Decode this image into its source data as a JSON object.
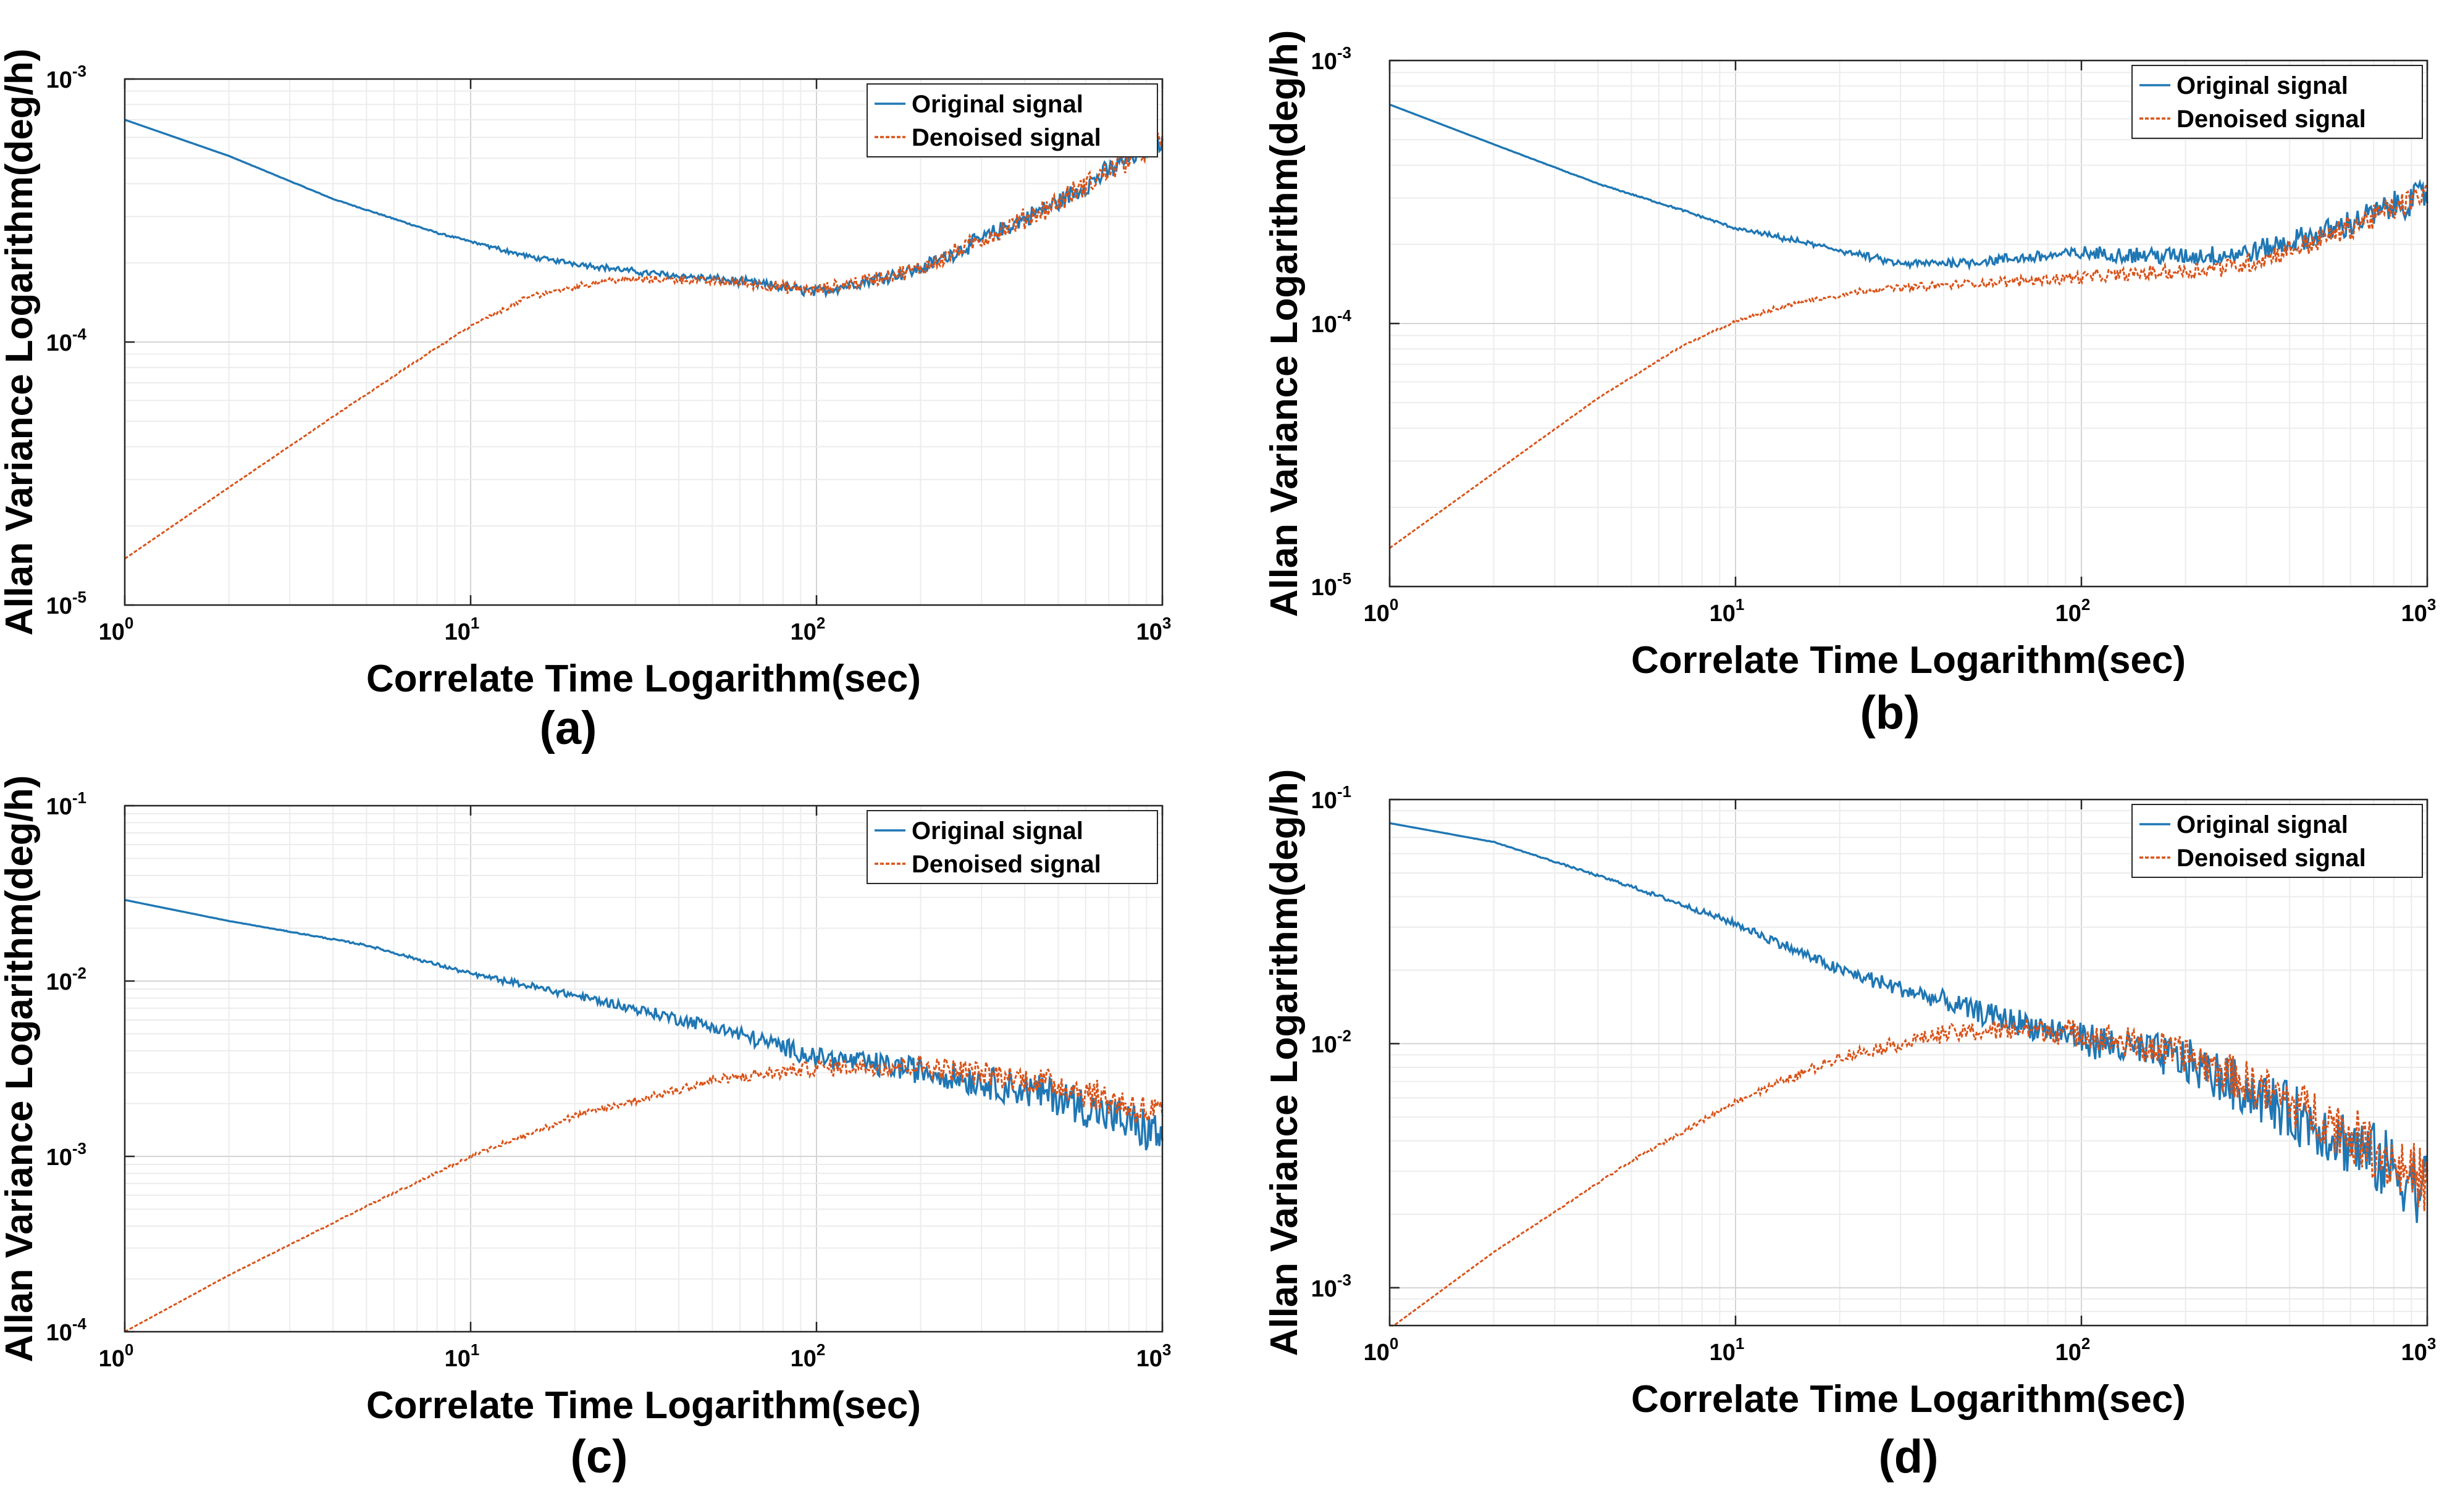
{
  "chart_data": [
    {
      "type": "line",
      "panel_label": "(a)",
      "xscale": "log",
      "yscale": "log",
      "xlim": [
        1,
        1000
      ],
      "ylim": [
        1e-05,
        0.001
      ],
      "xlabel": "Correlate Time Logarithm(sec)",
      "ylabel": "Allan Variance Logarithm(deg/h)",
      "x_ticks": [
        {
          "base": "10",
          "exp": "0"
        },
        {
          "base": "10",
          "exp": "1"
        },
        {
          "base": "10",
          "exp": "2"
        },
        {
          "base": "10",
          "exp": "3"
        }
      ],
      "y_ticks": [
        {
          "base": "10",
          "exp": "-5"
        },
        {
          "base": "10",
          "exp": "-4"
        },
        {
          "base": "10",
          "exp": "-3"
        }
      ],
      "grid": true,
      "legend_position": "top-right",
      "series": [
        {
          "name": "Original signal",
          "color": "#1f77b4",
          "style": "solid",
          "x": [
            1,
            2,
            4,
            8,
            15,
            30,
            60,
            100,
            200,
            500,
            1000
          ],
          "y": [
            0.0007,
            0.00051,
            0.00035,
            0.00026,
            0.00021,
            0.000185,
            0.00017,
            0.000155,
            0.00019,
            0.00034,
            0.0006
          ],
          "noise": 0.03
        },
        {
          "name": "Denoised signal",
          "color": "#d95319",
          "style": "dotted",
          "x": [
            1,
            2,
            4,
            7,
            10,
            15,
            25,
            40,
            60,
            100,
            200,
            500,
            1000
          ],
          "y": [
            1.5e-05,
            2.8e-05,
            5.2e-05,
            8.5e-05,
            0.000115,
            0.00015,
            0.000172,
            0.000173,
            0.000168,
            0.000157,
            0.00019,
            0.00034,
            0.0006
          ],
          "noise": 0.035
        }
      ]
    },
    {
      "type": "line",
      "panel_label": "(b)",
      "xscale": "log",
      "yscale": "log",
      "xlim": [
        1,
        1000
      ],
      "ylim": [
        1e-05,
        0.001
      ],
      "xlabel": "Correlate Time Logarithm(sec)",
      "ylabel": "Allan Variance Logarithm(deg/h)",
      "x_ticks": [
        {
          "base": "10",
          "exp": "0"
        },
        {
          "base": "10",
          "exp": "1"
        },
        {
          "base": "10",
          "exp": "2"
        },
        {
          "base": "10",
          "exp": "3"
        }
      ],
      "y_ticks": [
        {
          "base": "10",
          "exp": "-5"
        },
        {
          "base": "10",
          "exp": "-4"
        },
        {
          "base": "10",
          "exp": "-3"
        }
      ],
      "grid": true,
      "legend_position": "top-right",
      "series": [
        {
          "name": "Original signal",
          "color": "#1f77b4",
          "style": "solid",
          "x": [
            1,
            2,
            4,
            7,
            10,
            20,
            30,
            50,
            100,
            200,
            300,
            500,
            1000
          ],
          "y": [
            0.00068,
            0.00048,
            0.00034,
            0.00027,
            0.00023,
            0.00019,
            0.000168,
            0.000172,
            0.000185,
            0.00018,
            0.000185,
            0.00022,
            0.00031
          ],
          "noise": 0.04
        },
        {
          "name": "Denoised signal",
          "color": "#d95319",
          "style": "dotted",
          "x": [
            1,
            2,
            4,
            7,
            10,
            15,
            25,
            50,
            100,
            200,
            300,
            500,
            1000
          ],
          "y": [
            1.4e-05,
            2.7e-05,
            5.2e-05,
            8.2e-05,
            0.000102,
            0.00012,
            0.000135,
            0.000142,
            0.00015,
            0.000158,
            0.000168,
            0.00021,
            0.00031
          ],
          "noise": 0.035
        }
      ]
    },
    {
      "type": "line",
      "panel_label": "(c)",
      "xscale": "log",
      "yscale": "log",
      "xlim": [
        1,
        1000
      ],
      "ylim": [
        0.0001,
        0.1
      ],
      "xlabel": "Correlate Time Logarithm(sec)",
      "ylabel": "Allan Variance Logarithm(deg/h)",
      "x_ticks": [
        {
          "base": "10",
          "exp": "0"
        },
        {
          "base": "10",
          "exp": "1"
        },
        {
          "base": "10",
          "exp": "2"
        },
        {
          "base": "10",
          "exp": "3"
        }
      ],
      "y_ticks": [
        {
          "base": "10",
          "exp": "-4"
        },
        {
          "base": "10",
          "exp": "-3"
        },
        {
          "base": "10",
          "exp": "-2"
        },
        {
          "base": "10",
          "exp": "-1"
        }
      ],
      "grid": true,
      "legend_position": "top-right",
      "series": [
        {
          "name": "Original signal",
          "color": "#1f77b4",
          "style": "solid",
          "x": [
            1,
            2,
            5,
            10,
            20,
            50,
            100,
            200,
            500,
            1000
          ],
          "y": [
            0.029,
            0.022,
            0.016,
            0.011,
            0.0083,
            0.0055,
            0.0037,
            0.0031,
            0.0022,
            0.0013
          ],
          "noise": 0.09
        },
        {
          "name": "Denoised signal",
          "color": "#d95319",
          "style": "dotted",
          "x": [
            1,
            2,
            5,
            10,
            20,
            50,
            100,
            200,
            500,
            1000
          ],
          "y": [
            0.0001,
            0.00021,
            0.00052,
            0.001,
            0.0017,
            0.0027,
            0.0032,
            0.0033,
            0.0026,
            0.0017
          ],
          "noise": 0.07
        }
      ]
    },
    {
      "type": "line",
      "panel_label": "(d)",
      "xscale": "log",
      "yscale": "log",
      "xlim": [
        1,
        1000
      ],
      "ylim": [
        0.0007,
        0.1
      ],
      "xlabel": "Correlate Time Logarithm(sec)",
      "ylabel": "Allan Variance Logarithm(deg/h)",
      "x_ticks": [
        {
          "base": "10",
          "exp": "0"
        },
        {
          "base": "10",
          "exp": "1"
        },
        {
          "base": "10",
          "exp": "2"
        },
        {
          "base": "10",
          "exp": "3"
        }
      ],
      "y_ticks": [
        {
          "base": "10",
          "exp": "-3"
        },
        {
          "base": "10",
          "exp": "-2"
        },
        {
          "base": "10",
          "exp": "-1"
        }
      ],
      "grid": true,
      "legend_position": "top-right",
      "series": [
        {
          "name": "Original signal",
          "color": "#1f77b4",
          "style": "solid",
          "x": [
            1,
            2,
            5,
            10,
            20,
            50,
            100,
            200,
            500,
            1000
          ],
          "y": [
            0.08,
            0.067,
            0.044,
            0.031,
            0.02,
            0.0135,
            0.0105,
            0.0085,
            0.0045,
            0.0025
          ],
          "noise": 0.11
        },
        {
          "name": "Denoised signal",
          "color": "#d95319",
          "style": "dotted",
          "x": [
            1,
            2,
            5,
            10,
            20,
            40,
            70,
            100,
            200,
            500,
            1000
          ],
          "y": [
            0.00068,
            0.0014,
            0.0033,
            0.0058,
            0.0088,
            0.011,
            0.0115,
            0.011,
            0.009,
            0.005,
            0.0027
          ],
          "noise": 0.09
        }
      ]
    }
  ]
}
